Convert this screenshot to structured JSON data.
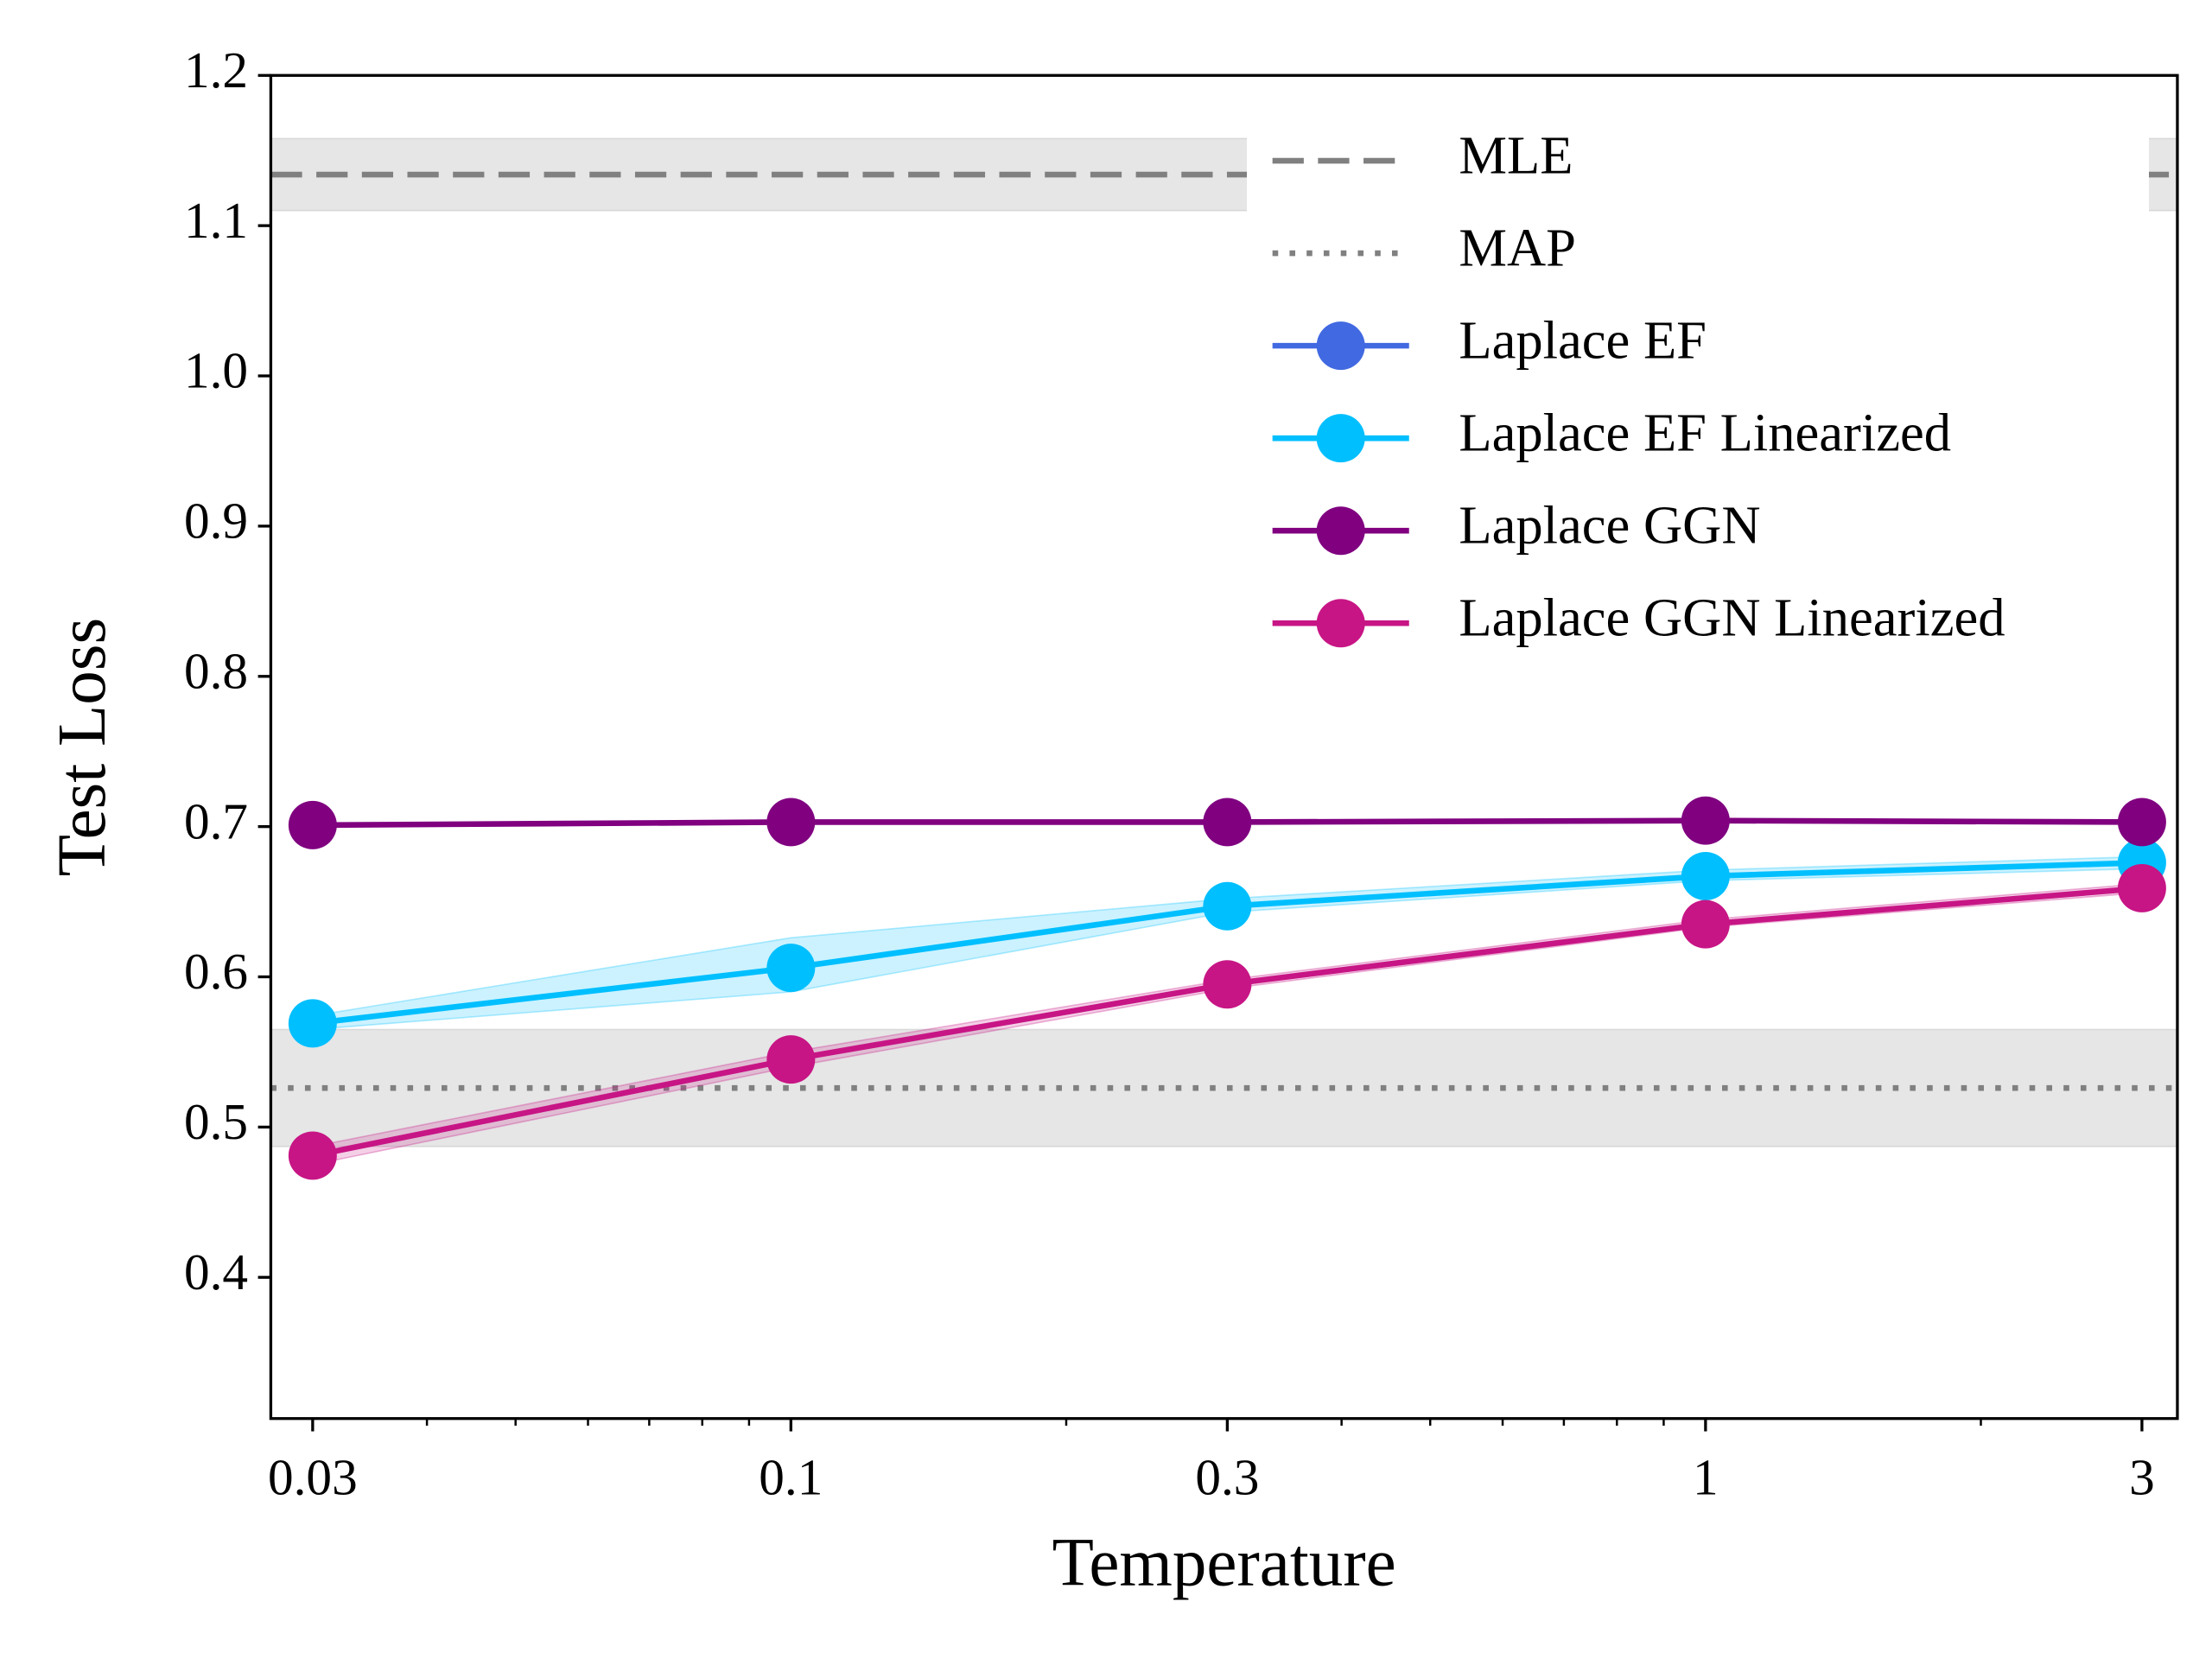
{
  "chart_data": {
    "type": "line",
    "xlabel": "Temperature",
    "ylabel": "Test Loss",
    "xscale": "log",
    "xlim": [
      0.027,
      3.28
    ],
    "ylim": [
      0.306,
      1.2
    ],
    "xticks": [
      0.03,
      0.1,
      0.3,
      1,
      3
    ],
    "xminor_ticks": [
      0.04,
      0.05,
      0.06,
      0.07,
      0.08,
      0.09,
      0.2,
      0.4,
      0.5,
      0.6,
      0.7,
      0.8,
      0.9,
      2
    ],
    "yticks": [
      {
        "value": 0.4,
        "label": "0.4"
      },
      {
        "value": 0.5,
        "label": "0.5"
      },
      {
        "value": 0.6,
        "label": "0.6"
      },
      {
        "value": 0.7,
        "label": "0.7"
      },
      {
        "value": 0.8,
        "label": "0.8"
      },
      {
        "value": 0.9,
        "label": "0.9"
      },
      {
        "value": 1.0,
        "label": "1.0"
      },
      {
        "value": 1.1,
        "label": "1.1"
      },
      {
        "value": 1.2,
        "label": "1.2"
      }
    ],
    "legend": "upper right",
    "reference_lines": [
      {
        "name": "MLE",
        "value": 1.134,
        "lower": 1.11,
        "upper": 1.158,
        "style": "dashed",
        "color": "#808080"
      },
      {
        "name": "MAP",
        "value": 0.526,
        "lower": 0.487,
        "upper": 0.565,
        "style": "dotted",
        "color": "#808080"
      }
    ],
    "x": [
      0.03,
      0.1,
      0.3,
      1,
      3
    ],
    "series": [
      {
        "name": "Laplace EF",
        "color": "#4169e1",
        "values": [
          null,
          null,
          null,
          null,
          null
        ]
      },
      {
        "name": "Laplace EF Linearized",
        "color": "#00bfff",
        "values": [
          0.569,
          0.606,
          0.647,
          0.667,
          0.676
        ],
        "lower": [
          0.565,
          0.59,
          0.643,
          0.664,
          0.672
        ],
        "upper": [
          0.574,
          0.626,
          0.652,
          0.671,
          0.68
        ]
      },
      {
        "name": "Laplace GGN",
        "color": "#800080",
        "values": [
          0.701,
          0.703,
          0.703,
          0.704,
          0.703
        ]
      },
      {
        "name": "Laplace GGN Linearized",
        "color": "#c71585",
        "values": [
          0.481,
          0.545,
          0.595,
          0.635,
          0.659
        ],
        "lower": [
          0.475,
          0.54,
          0.592,
          0.633,
          0.656
        ],
        "upper": [
          0.487,
          0.55,
          0.598,
          0.638,
          0.662
        ]
      }
    ]
  }
}
